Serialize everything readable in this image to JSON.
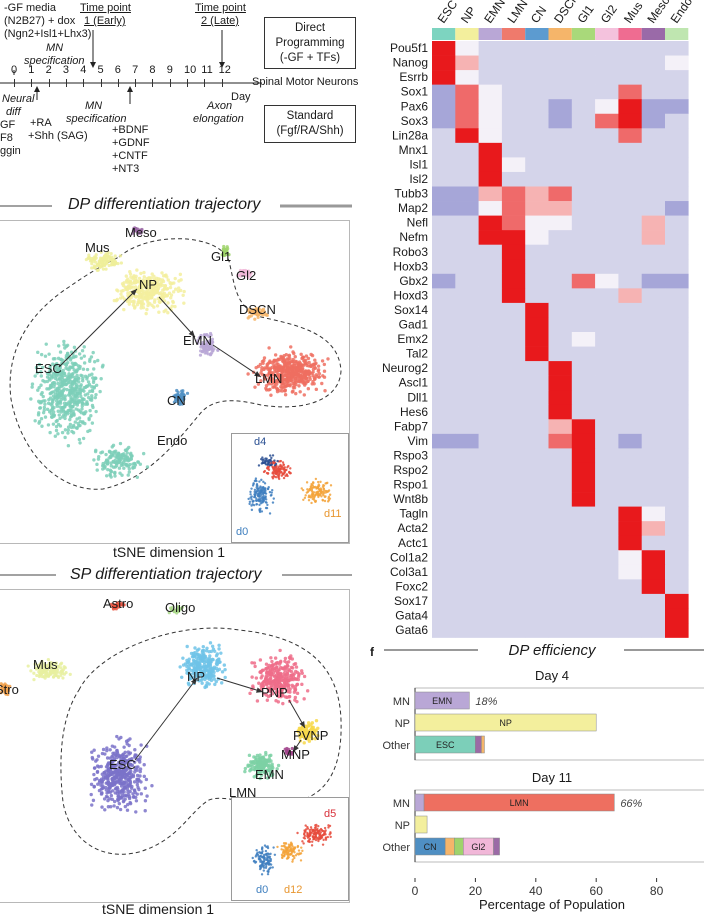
{
  "timeline": {
    "media_lines": [
      "-GF media",
      "(N2B27) + dox",
      "(Ngn2+Isl1+Lhx3)"
    ],
    "mn_spec_top": [
      "MN",
      "specification"
    ],
    "time_point_1": [
      "Time point",
      "1 (Early)"
    ],
    "time_point_2": [
      "Time point",
      "2 (Late)"
    ],
    "days": [
      "0",
      "1",
      "2",
      "3",
      "4",
      "5",
      "6",
      "7",
      "8",
      "9",
      "10",
      "11",
      "12"
    ],
    "day_label": "Day",
    "spinal": "Spinal Motor Neurons",
    "neural_diff": [
      "Neural",
      "diff"
    ],
    "left_cut": [
      "GF",
      "F8",
      "ggin"
    ],
    "ra_shh": [
      "+RA",
      "+Shh (SAG)"
    ],
    "mn_spec_bottom": [
      "MN",
      "specification"
    ],
    "factors": [
      "+BDNF",
      "+GDNF",
      "+CNTF",
      "+NT3"
    ],
    "axon": [
      "Axon",
      "elongation"
    ],
    "direct_box": [
      "Direct",
      "Programming",
      "(-GF + TFs)"
    ],
    "standard_box": [
      "Standard",
      "(Fgf/RA/Shh)"
    ]
  },
  "dp_panel": {
    "title": "DP differentiation trajectory",
    "clusters": [
      "Meso",
      "Mus",
      "Gl1",
      "Gl2",
      "NP",
      "DSCN",
      "EMN",
      "ESC",
      "LMN",
      "CN",
      "Endo"
    ],
    "inset_labels": [
      "d4",
      "d0",
      "d11"
    ],
    "xlabel": "tSNE dimension 1",
    "colors": {
      "ESC": "#7ccfb9",
      "NP": "#f3ef9d",
      "EMN": "#b9a7d6",
      "LMN": "#ee6f60",
      "CN": "#4f8fc3",
      "DSCN": "#f5b56a",
      "Gl1": "#9fd36b",
      "Gl2": "#f1b7d8",
      "Mus": "#efee9a",
      "Meso": "#9b6aa6",
      "Endo": "#f2d46a"
    }
  },
  "sp_panel": {
    "title": "SP differentiation trajectory",
    "clusters": [
      "Astro",
      "Oligo",
      "Mus",
      "Stro",
      "NP",
      "PNP",
      "PVNP",
      "MNP",
      "EMN",
      "ESC",
      "LMN"
    ],
    "inset_labels": [
      "d5",
      "d0",
      "d12"
    ],
    "xlabel": "tSNE dimension 1",
    "colors": {
      "ESC": "#7a72c9",
      "NP": "#6fc3e8",
      "PNP": "#ef6d8a",
      "PVNP": "#f7d84a",
      "MNP": "#a1448c",
      "EMN": "#7dd1a4",
      "Mus": "#e8f0a0",
      "Astro": "#e8533f",
      "Oligo": "#a9d78a",
      "Stro": "#f0a04b"
    }
  },
  "heatmap": {
    "columns": [
      "ESC",
      "NP",
      "EMN",
      "LMN",
      "CN",
      "DSCN",
      "Gl1",
      "Gl2",
      "Mus",
      "Meso",
      "Endo"
    ],
    "column_colors": [
      "#7dd4c0",
      "#f3ef9d",
      "#b9a7d6",
      "#ef7a6c",
      "#5c9bd0",
      "#f5b56a",
      "#a9d97a",
      "#f4c2dd",
      "#ef6c91",
      "#9a6aa8",
      "#bfe6b0"
    ],
    "genes": [
      "Pou5f1",
      "Nanog",
      "Esrrb",
      "Sox1",
      "Pax6",
      "Sox3",
      "Lin28a",
      "Mnx1",
      "Isl1",
      "Isl2",
      "Tubb3",
      "Map2",
      "Nefl",
      "Nefm",
      "Robo3",
      "Hoxb3",
      "Gbx2",
      "Hoxd3",
      "Sox14",
      "Gad1",
      "Emx2",
      "Tal2",
      "Neurog2",
      "Ascl1",
      "Dll1",
      "Hes6",
      "Fabp7",
      "Vim",
      "Rspo3",
      "Rspo2",
      "Rspo1",
      "Wnt8b",
      "Tagln",
      "Acta2",
      "Actc1",
      "Col1a2",
      "Col3a1",
      "Foxc2",
      "Sox17",
      "Gata4",
      "Gata6"
    ],
    "values": [
      [
        3,
        0,
        -1,
        -1,
        -1,
        -1,
        -1,
        -1,
        -1,
        -1,
        -1
      ],
      [
        3,
        1,
        -1,
        -1,
        -1,
        -1,
        -1,
        -1,
        -1,
        -1,
        0
      ],
      [
        3,
        0,
        -1,
        -1,
        -1,
        -1,
        -1,
        -1,
        -1,
        -1,
        -1
      ],
      [
        -2,
        2,
        0,
        -1,
        -1,
        -1,
        -1,
        -1,
        2,
        -1,
        -1
      ],
      [
        -2,
        2,
        0,
        -1,
        -1,
        -2,
        -1,
        0,
        3,
        -2,
        -2
      ],
      [
        -2,
        2,
        0,
        -1,
        -1,
        -2,
        -1,
        2,
        3,
        -2,
        -1
      ],
      [
        -1,
        3,
        0,
        -1,
        -1,
        -1,
        -1,
        -1,
        2,
        -1,
        -1
      ],
      [
        -1,
        -1,
        3,
        -1,
        -1,
        -1,
        -1,
        -1,
        -1,
        -1,
        -1
      ],
      [
        -1,
        -1,
        3,
        0,
        -1,
        -1,
        -1,
        -1,
        -1,
        -1,
        -1
      ],
      [
        -1,
        -1,
        3,
        -1,
        -1,
        -1,
        -1,
        -1,
        -1,
        -1,
        -1
      ],
      [
        -2,
        -2,
        1,
        2,
        1,
        2,
        -1,
        -1,
        -1,
        -1,
        -1
      ],
      [
        -2,
        -2,
        0,
        2,
        1,
        1,
        -1,
        -1,
        -1,
        -1,
        -2
      ],
      [
        -1,
        -1,
        3,
        2,
        0,
        0,
        -1,
        -1,
        -1,
        1,
        -1
      ],
      [
        -1,
        -1,
        3,
        3,
        0,
        -1,
        -1,
        -1,
        -1,
        1,
        -1
      ],
      [
        -1,
        -1,
        -1,
        3,
        -1,
        -1,
        -1,
        -1,
        -1,
        -1,
        -1
      ],
      [
        -1,
        -1,
        -1,
        3,
        -1,
        -1,
        -1,
        -1,
        -1,
        -1,
        -1
      ],
      [
        -2,
        -1,
        -1,
        3,
        -1,
        -1,
        2,
        0,
        -1,
        -2,
        -2
      ],
      [
        -1,
        -1,
        -1,
        3,
        -1,
        -1,
        -1,
        -1,
        1,
        -1,
        -1
      ],
      [
        -1,
        -1,
        -1,
        -1,
        3,
        -1,
        -1,
        -1,
        -1,
        -1,
        -1
      ],
      [
        -1,
        -1,
        -1,
        -1,
        3,
        -1,
        -1,
        -1,
        -1,
        -1,
        -1
      ],
      [
        -1,
        -1,
        -1,
        -1,
        3,
        -1,
        0,
        -1,
        -1,
        -1,
        -1
      ],
      [
        -1,
        -1,
        -1,
        -1,
        3,
        -1,
        -1,
        -1,
        -1,
        -1,
        -1
      ],
      [
        -1,
        -1,
        -1,
        -1,
        -1,
        3,
        -1,
        -1,
        -1,
        -1,
        -1
      ],
      [
        -1,
        -1,
        -1,
        -1,
        -1,
        3,
        -1,
        -1,
        -1,
        -1,
        -1
      ],
      [
        -1,
        -1,
        -1,
        -1,
        -1,
        3,
        -1,
        -1,
        -1,
        -1,
        -1
      ],
      [
        -1,
        -1,
        -1,
        -1,
        -1,
        3,
        -1,
        -1,
        -1,
        -1,
        -1
      ],
      [
        -1,
        -1,
        -1,
        -1,
        -1,
        1,
        3,
        -1,
        -1,
        -1,
        -1
      ],
      [
        -2,
        -2,
        -1,
        -1,
        -1,
        2,
        3,
        -1,
        -2,
        -1,
        -1
      ],
      [
        -1,
        -1,
        -1,
        -1,
        -1,
        -1,
        3,
        -1,
        -1,
        -1,
        -1
      ],
      [
        -1,
        -1,
        -1,
        -1,
        -1,
        -1,
        3,
        -1,
        -1,
        -1,
        -1
      ],
      [
        -1,
        -1,
        -1,
        -1,
        -1,
        -1,
        3,
        -1,
        -1,
        -1,
        -1
      ],
      [
        -1,
        -1,
        -1,
        -1,
        -1,
        -1,
        3,
        -1,
        -1,
        -1,
        -1
      ],
      [
        -1,
        -1,
        -1,
        -1,
        -1,
        -1,
        -1,
        -1,
        3,
        0,
        -1
      ],
      [
        -1,
        -1,
        -1,
        -1,
        -1,
        -1,
        -1,
        -1,
        3,
        1,
        -1
      ],
      [
        -1,
        -1,
        -1,
        -1,
        -1,
        -1,
        -1,
        -1,
        3,
        -1,
        -1
      ],
      [
        -1,
        -1,
        -1,
        -1,
        -1,
        -1,
        -1,
        -1,
        0,
        3,
        -1
      ],
      [
        -1,
        -1,
        -1,
        -1,
        -1,
        -1,
        -1,
        -1,
        0,
        3,
        -1
      ],
      [
        -1,
        -1,
        -1,
        -1,
        -1,
        -1,
        -1,
        -1,
        -1,
        3,
        -1
      ],
      [
        -1,
        -1,
        -1,
        -1,
        -1,
        -1,
        -1,
        -1,
        -1,
        -1,
        3
      ],
      [
        -1,
        -1,
        -1,
        -1,
        -1,
        -1,
        -1,
        -1,
        -1,
        -1,
        3
      ],
      [
        -1,
        -1,
        -1,
        -1,
        -1,
        -1,
        -1,
        -1,
        -1,
        -1,
        3
      ]
    ]
  },
  "panel_f_letter": "f",
  "chart_data": {
    "type": "bar",
    "title": "DP efficiency",
    "xlabel": "Percentage of Population",
    "xticks": [
      "0",
      "20",
      "40",
      "60",
      "80"
    ],
    "xlim": [
      0,
      100
    ],
    "groups": [
      {
        "name": "Day 4",
        "rows": [
          {
            "label": "MN",
            "segments": [
              {
                "name": "EMN",
                "value": 18,
                "color": "#b9a7d6"
              }
            ],
            "annotation": "18%"
          },
          {
            "label": "NP",
            "segments": [
              {
                "name": "NP",
                "value": 60,
                "color": "#f3ef9d"
              }
            ]
          },
          {
            "label": "Other",
            "segments": [
              {
                "name": "ESC",
                "value": 20,
                "color": "#7ccfb9"
              },
              {
                "name": "",
                "value": 2,
                "color": "#9b6aa6"
              },
              {
                "name": "",
                "value": 1,
                "color": "#f5b56a"
              }
            ]
          }
        ]
      },
      {
        "name": "Day 11",
        "rows": [
          {
            "label": "MN",
            "segments": [
              {
                "name": "",
                "value": 3,
                "color": "#b9a7d6"
              },
              {
                "name": "LMN",
                "value": 63,
                "color": "#ee6f60"
              }
            ],
            "annotation": "66%"
          },
          {
            "label": "NP",
            "segments": [
              {
                "name": "",
                "value": 4,
                "color": "#f3ef9d"
              }
            ]
          },
          {
            "label": "Other",
            "segments": [
              {
                "name": "CN",
                "value": 10,
                "color": "#4f8fc3"
              },
              {
                "name": "",
                "value": 3,
                "color": "#f5b56a"
              },
              {
                "name": "",
                "value": 3,
                "color": "#9fd36b"
              },
              {
                "name": "Gl2",
                "value": 10,
                "color": "#f1b7d8"
              },
              {
                "name": "",
                "value": 2,
                "color": "#9b6aa6"
              }
            ]
          }
        ]
      }
    ]
  }
}
